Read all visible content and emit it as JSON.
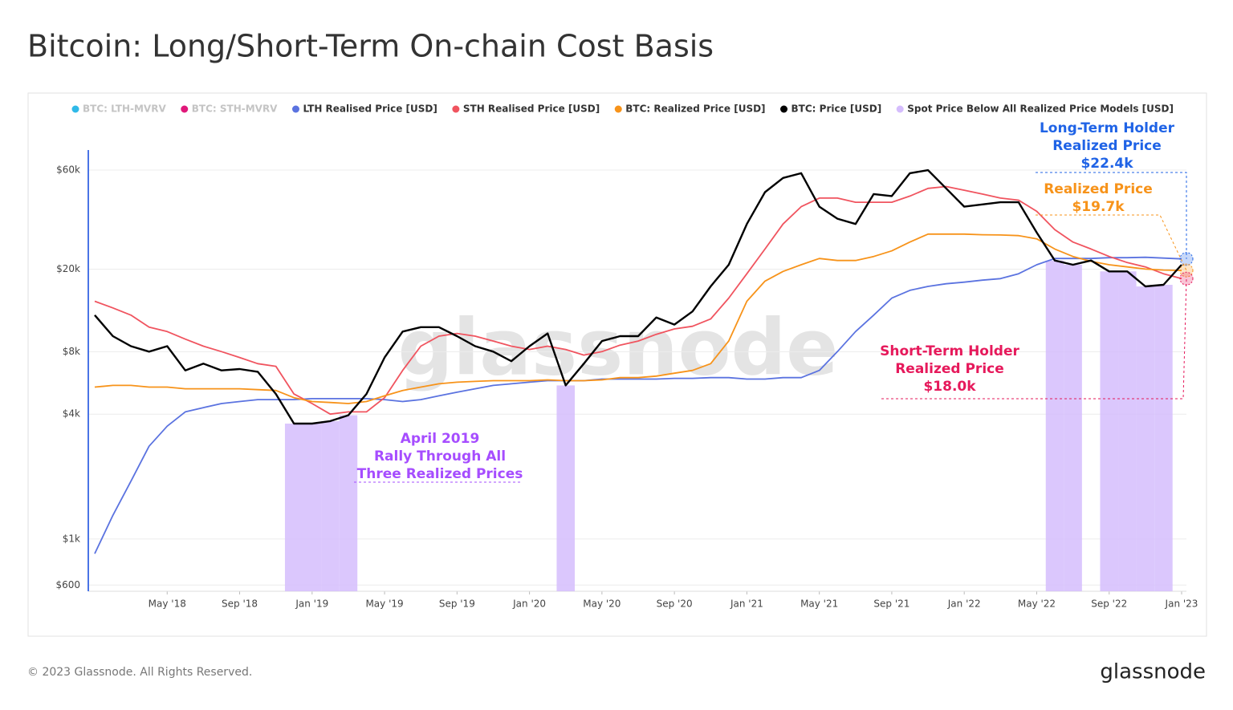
{
  "title": "Bitcoin: Long/Short-Term On-chain Cost Basis",
  "footer": "© 2023 Glassnode. All Rights Reserved.",
  "logo": "glassnode",
  "chart_data": {
    "type": "line",
    "watermark": "glassnode",
    "log_scale": true,
    "grid": true,
    "ylim": [
      560,
      75000
    ],
    "yticks": [
      {
        "value": 600,
        "label": "$600"
      },
      {
        "value": 1000,
        "label": "$1k"
      },
      {
        "value": 4000,
        "label": "$4k"
      },
      {
        "value": 8000,
        "label": "$8k"
      },
      {
        "value": 20000,
        "label": "$20k"
      },
      {
        "value": 60000,
        "label": "$60k"
      }
    ],
    "xlim": [
      "2018-01",
      "2023-01"
    ],
    "xticks": [
      {
        "value": "2018-05",
        "label": "May '18"
      },
      {
        "value": "2018-09",
        "label": "Sep '18"
      },
      {
        "value": "2019-01",
        "label": "Jan '19"
      },
      {
        "value": "2019-05",
        "label": "May '19"
      },
      {
        "value": "2019-09",
        "label": "Sep '19"
      },
      {
        "value": "2020-01",
        "label": "Jan '20"
      },
      {
        "value": "2020-05",
        "label": "May '20"
      },
      {
        "value": "2020-09",
        "label": "Sep '20"
      },
      {
        "value": "2021-01",
        "label": "Jan '21"
      },
      {
        "value": "2021-05",
        "label": "May '21"
      },
      {
        "value": "2021-09",
        "label": "Sep '21"
      },
      {
        "value": "2022-01",
        "label": "Jan '22"
      },
      {
        "value": "2022-05",
        "label": "May '22"
      },
      {
        "value": "2022-09",
        "label": "Sep '22"
      },
      {
        "value": "2023-01",
        "label": "Jan '23"
      }
    ],
    "x": [
      "2018-01",
      "2018-02",
      "2018-03",
      "2018-04",
      "2018-05",
      "2018-06",
      "2018-07",
      "2018-08",
      "2018-09",
      "2018-10",
      "2018-11",
      "2018-12",
      "2019-01",
      "2019-02",
      "2019-03",
      "2019-04",
      "2019-05",
      "2019-06",
      "2019-07",
      "2019-08",
      "2019-09",
      "2019-10",
      "2019-11",
      "2019-12",
      "2020-01",
      "2020-02",
      "2020-03",
      "2020-04",
      "2020-05",
      "2020-06",
      "2020-07",
      "2020-08",
      "2020-09",
      "2020-10",
      "2020-11",
      "2020-12",
      "2021-01",
      "2021-02",
      "2021-03",
      "2021-04",
      "2021-05",
      "2021-06",
      "2021-07",
      "2021-08",
      "2021-09",
      "2021-10",
      "2021-11",
      "2021-12",
      "2022-01",
      "2022-02",
      "2022-03",
      "2022-04",
      "2022-05",
      "2022-06",
      "2022-07",
      "2022-08",
      "2022-09",
      "2022-10",
      "2022-11",
      "2022-12",
      "2023-01"
    ],
    "legend_inactive": [
      {
        "name": "BTC: LTH-MVRV",
        "color": "#2fb9e8"
      },
      {
        "name": "BTC: STH-MVRV",
        "color": "#e0187a"
      }
    ],
    "series": [
      {
        "name": "LTH Realised Price [USD]",
        "color": "#5b73e0",
        "type": "line",
        "values": [
          850,
          1300,
          1900,
          2800,
          3500,
          4100,
          4300,
          4500,
          4600,
          4700,
          4700,
          4700,
          4750,
          4750,
          4750,
          4750,
          4700,
          4600,
          4700,
          4900,
          5100,
          5300,
          5500,
          5600,
          5700,
          5800,
          5800,
          5800,
          5900,
          5900,
          5900,
          5900,
          5950,
          5950,
          6000,
          6000,
          5900,
          5900,
          6000,
          6000,
          6500,
          8000,
          10000,
          12000,
          14500,
          15800,
          16500,
          17000,
          17300,
          17700,
          18000,
          19000,
          21000,
          22500,
          22500,
          22500,
          22700,
          22700,
          22800,
          22600,
          22400
        ]
      },
      {
        "name": "STH Realised Price [USD]",
        "color": "#f0545f",
        "type": "line",
        "values": [
          14000,
          13000,
          12000,
          10500,
          10000,
          9200,
          8500,
          8000,
          7500,
          7000,
          6800,
          5000,
          4500,
          4000,
          4100,
          4100,
          4800,
          6500,
          8500,
          9500,
          9800,
          9500,
          9000,
          8500,
          8200,
          8500,
          8200,
          7700,
          8000,
          8600,
          9000,
          9700,
          10300,
          10600,
          11500,
          14500,
          19000,
          25000,
          33000,
          40000,
          44000,
          44000,
          42000,
          42000,
          42000,
          45000,
          49000,
          50000,
          48000,
          46000,
          44000,
          43000,
          38000,
          31000,
          27000,
          25000,
          23000,
          21500,
          20500,
          19000,
          18000
        ]
      },
      {
        "name": "BTC: Realized Price [USD]",
        "color": "#f7931a",
        "type": "line",
        "values": [
          5400,
          5500,
          5500,
          5400,
          5400,
          5300,
          5300,
          5300,
          5300,
          5250,
          5200,
          4800,
          4600,
          4550,
          4500,
          4600,
          4900,
          5200,
          5400,
          5600,
          5700,
          5750,
          5800,
          5800,
          5800,
          5850,
          5800,
          5800,
          5850,
          6000,
          6000,
          6100,
          6300,
          6500,
          7000,
          9000,
          14000,
          17500,
          19500,
          21000,
          22500,
          22000,
          22000,
          23000,
          24500,
          27000,
          29500,
          29500,
          29500,
          29300,
          29200,
          29000,
          28000,
          25000,
          23000,
          21800,
          21000,
          20500,
          20000,
          19800,
          19700
        ]
      },
      {
        "name": "BTC: Price [USD]",
        "color": "#000000",
        "type": "line",
        "values": [
          12000,
          9500,
          8500,
          8000,
          8500,
          6500,
          7000,
          6500,
          6600,
          6400,
          5000,
          3600,
          3600,
          3700,
          3950,
          5000,
          7500,
          10000,
          10500,
          10500,
          9500,
          8500,
          8000,
          7200,
          8500,
          9800,
          5500,
          7000,
          9000,
          9500,
          9500,
          11700,
          10800,
          12500,
          16500,
          21000,
          33000,
          47000,
          55000,
          58000,
          40000,
          35000,
          33000,
          46000,
          45000,
          58000,
          60000,
          49000,
          40000,
          41000,
          42000,
          42000,
          30000,
          22000,
          21000,
          22000,
          19500,
          19500,
          16500,
          16800,
          21000
        ]
      },
      {
        "name": "Spot Price Below All Realized Price Models [USD]",
        "color": "#d5bdfd",
        "type": "bar",
        "values": [
          null,
          null,
          null,
          null,
          null,
          null,
          null,
          null,
          null,
          null,
          null,
          3600,
          3600,
          3700,
          3950,
          null,
          null,
          null,
          null,
          null,
          null,
          null,
          null,
          null,
          null,
          null,
          5500,
          null,
          null,
          null,
          null,
          null,
          null,
          null,
          null,
          null,
          null,
          null,
          null,
          null,
          null,
          null,
          null,
          null,
          null,
          null,
          null,
          null,
          null,
          null,
          null,
          null,
          null,
          22000,
          21000,
          null,
          19500,
          19500,
          16500,
          16800,
          null
        ]
      }
    ],
    "annotations": [
      {
        "lines": [
          "April 2019",
          "Rally Through All",
          "Three Realized Prices"
        ],
        "color": "#a64dff"
      },
      {
        "lines": [
          "Long-Term Holder",
          "Realized Price"
        ],
        "value": {
          "value": 22400,
          "label": "$22.4k"
        },
        "color": "#1f63e6"
      },
      {
        "lines": [
          "Realized Price"
        ],
        "value": {
          "value": 19700,
          "label": "$19.7k"
        },
        "color": "#f7931a"
      },
      {
        "lines": [
          "Short-Term Holder",
          "Realized Price"
        ],
        "value": {
          "value": 18000,
          "label": "$18.0k"
        },
        "color": "#e6195b"
      }
    ]
  }
}
